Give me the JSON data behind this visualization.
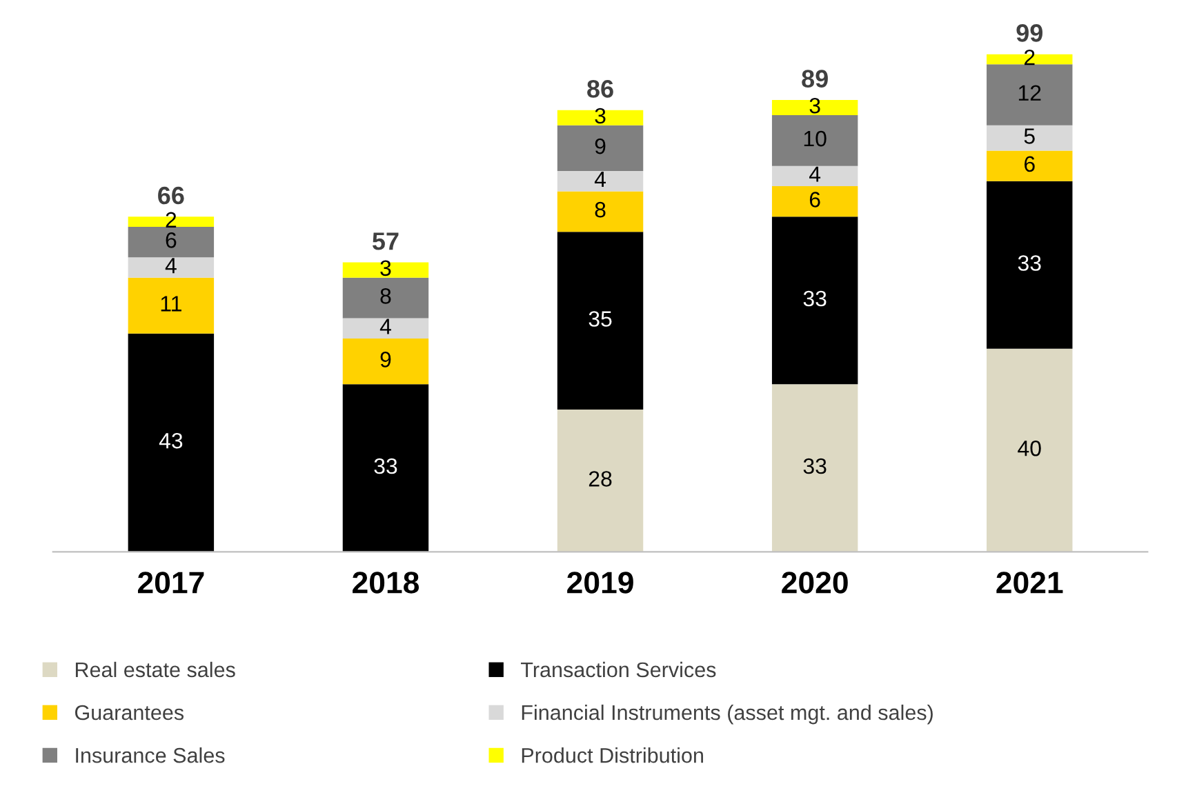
{
  "chart_data": {
    "type": "bar",
    "stacked": true,
    "categories": [
      "2017",
      "2018",
      "2019",
      "2020",
      "2021"
    ],
    "series": [
      {
        "name": "Real estate sales",
        "color": "#ddd9c3",
        "values": [
          null,
          null,
          28,
          33,
          40
        ]
      },
      {
        "name": "Transaction Services",
        "color": "#000000",
        "values": [
          43,
          33,
          35,
          33,
          33
        ]
      },
      {
        "name": "Guarantees",
        "color": "#ffd200",
        "values": [
          11,
          9,
          8,
          6,
          6
        ]
      },
      {
        "name": "Financial Instruments (asset mgt. and sales)",
        "color": "#d9d9d9",
        "values": [
          4,
          4,
          4,
          4,
          5
        ]
      },
      {
        "name": "Insurance Sales",
        "color": "#808080",
        "values": [
          6,
          8,
          9,
          10,
          12
        ]
      },
      {
        "name": "Product Distribution",
        "color": "#ffff00",
        "values": [
          2,
          3,
          3,
          3,
          2
        ]
      }
    ],
    "totals": [
      "66",
      "57",
      "86",
      "89",
      "99"
    ],
    "data_labels": true,
    "legend": "bottom",
    "grid": false,
    "tick_labels": "x"
  }
}
